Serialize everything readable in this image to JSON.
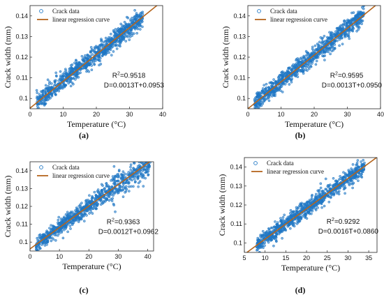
{
  "panels": [
    {
      "label": "(a)",
      "chart_data": {
        "type": "scatter",
        "title": "",
        "xlabel": "Temperature (°C)",
        "ylabel": "Crack width (mm)",
        "xlim": [
          0,
          40
        ],
        "ylim": [
          0.095,
          0.145
        ],
        "xticks": [
          0,
          10,
          20,
          30,
          40
        ],
        "yticks": [
          0.1,
          0.11,
          0.12,
          0.13,
          0.14
        ],
        "x_range": [
          2,
          34
        ],
        "series": [
          {
            "name": "Crack data",
            "color": "#1f77c4"
          },
          {
            "name": "linear regression curve",
            "color": "#b5651d",
            "slope": 0.0013,
            "intercept": 0.0953
          }
        ],
        "annotations": {
          "r2_label": "R",
          "r2_value": "=0.9518",
          "equation": "D=0.0013T+0.0953"
        },
        "legend": "top-left"
      }
    },
    {
      "label": "(b)",
      "chart_data": {
        "type": "scatter",
        "title": "",
        "xlabel": "Temperature (°C)",
        "ylabel": "Crack width (mm)",
        "xlim": [
          0,
          40
        ],
        "ylim": [
          0.095,
          0.145
        ],
        "xticks": [
          0,
          10,
          20,
          30,
          40
        ],
        "yticks": [
          0.1,
          0.11,
          0.12,
          0.13,
          0.14
        ],
        "x_range": [
          2,
          35
        ],
        "series": [
          {
            "name": "Crack data",
            "color": "#1f77c4"
          },
          {
            "name": "linear regression curve",
            "color": "#b5651d",
            "slope": 0.0013,
            "intercept": 0.095
          }
        ],
        "annotations": {
          "r2_label": "R",
          "r2_value": "=0.9595",
          "equation": "D=0.0013T+0.0950"
        },
        "legend": "top-left"
      }
    },
    {
      "label": "(c)",
      "chart_data": {
        "type": "scatter",
        "title": "",
        "xlabel": "Temperature (°C)",
        "ylabel": "Crack width (mm)",
        "xlim": [
          0,
          42
        ],
        "ylim": [
          0.095,
          0.145
        ],
        "xticks": [
          0,
          10,
          20,
          30,
          40
        ],
        "yticks": [
          0.1,
          0.11,
          0.12,
          0.13,
          0.14
        ],
        "x_range": [
          2,
          41
        ],
        "series": [
          {
            "name": "Crack data",
            "color": "#1f77c4"
          },
          {
            "name": "linear regression curve",
            "color": "#b5651d",
            "slope": 0.0012,
            "intercept": 0.0962
          }
        ],
        "annotations": {
          "r2_label": "R",
          "r2_value": "=0.9363",
          "equation": "D=0.0012T+0.0962"
        },
        "legend": "top-left"
      }
    },
    {
      "label": "(d)",
      "chart_data": {
        "type": "scatter",
        "title": "",
        "xlabel": "Temperature (°C)",
        "ylabel": "Crack width (mm)",
        "xlim": [
          5,
          37
        ],
        "ylim": [
          0.095,
          0.145
        ],
        "xticks": [
          5,
          10,
          15,
          20,
          25,
          30,
          35
        ],
        "yticks": [
          0.1,
          0.11,
          0.12,
          0.13,
          0.14
        ],
        "x_range": [
          8,
          34
        ],
        "series": [
          {
            "name": "Crack data",
            "color": "#1f77c4"
          },
          {
            "name": "linear regression curve",
            "color": "#b5651d",
            "slope": 0.0016,
            "intercept": 0.086
          }
        ],
        "annotations": {
          "r2_label": "R",
          "r2_value": "=0.9292",
          "equation": "D=0.0016T+0.0860"
        },
        "legend": "top-left"
      }
    }
  ]
}
